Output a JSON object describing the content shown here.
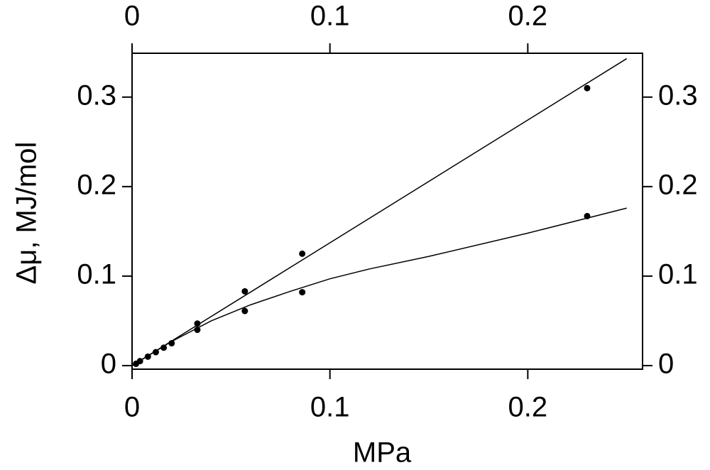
{
  "chart_data": {
    "type": "scatter",
    "x_label": "MPa",
    "y_label": "Δμ, MJ/mol",
    "xlim": [
      0,
      0.258
    ],
    "xticks": [
      0,
      0.1,
      0.2
    ],
    "x2lim": [
      0,
      0.258
    ],
    "x2ticks": [
      0,
      0.1,
      0.2
    ],
    "ylim": [
      -0.004,
      0.349
    ],
    "yticks": [
      0,
      0.1,
      0.2,
      0.3
    ],
    "y2lim": [
      -0.004,
      0.349
    ],
    "y2ticks": [
      0,
      0.1,
      0.2,
      0.3
    ],
    "series": [
      {
        "type": "scatter",
        "color": "#000",
        "x": [
          0.002,
          0.004,
          0.008,
          0.012,
          0.016,
          0.02,
          0.033,
          0.057,
          0.086,
          0.23
        ],
        "values": [
          0.002,
          0.005,
          0.01,
          0.015,
          0.02,
          0.025,
          0.047,
          0.083,
          0.125,
          0.31
        ]
      },
      {
        "type": "scatter",
        "color": "#000",
        "x": [
          0.033,
          0.057,
          0.086,
          0.23
        ],
        "values": [
          0.04,
          0.061,
          0.082,
          0.167
        ]
      },
      {
        "type": "line",
        "color": "#000",
        "x": [
          0,
          0.25
        ],
        "values": [
          0,
          0.343
        ]
      },
      {
        "type": "line",
        "color": "#000",
        "x": [
          0,
          0.02,
          0.04,
          0.06,
          0.08,
          0.1,
          0.12,
          0.15,
          0.2,
          0.25
        ],
        "values": [
          0,
          0.027,
          0.05,
          0.068,
          0.083,
          0.097,
          0.108,
          0.122,
          0.148,
          0.176
        ]
      }
    ]
  }
}
